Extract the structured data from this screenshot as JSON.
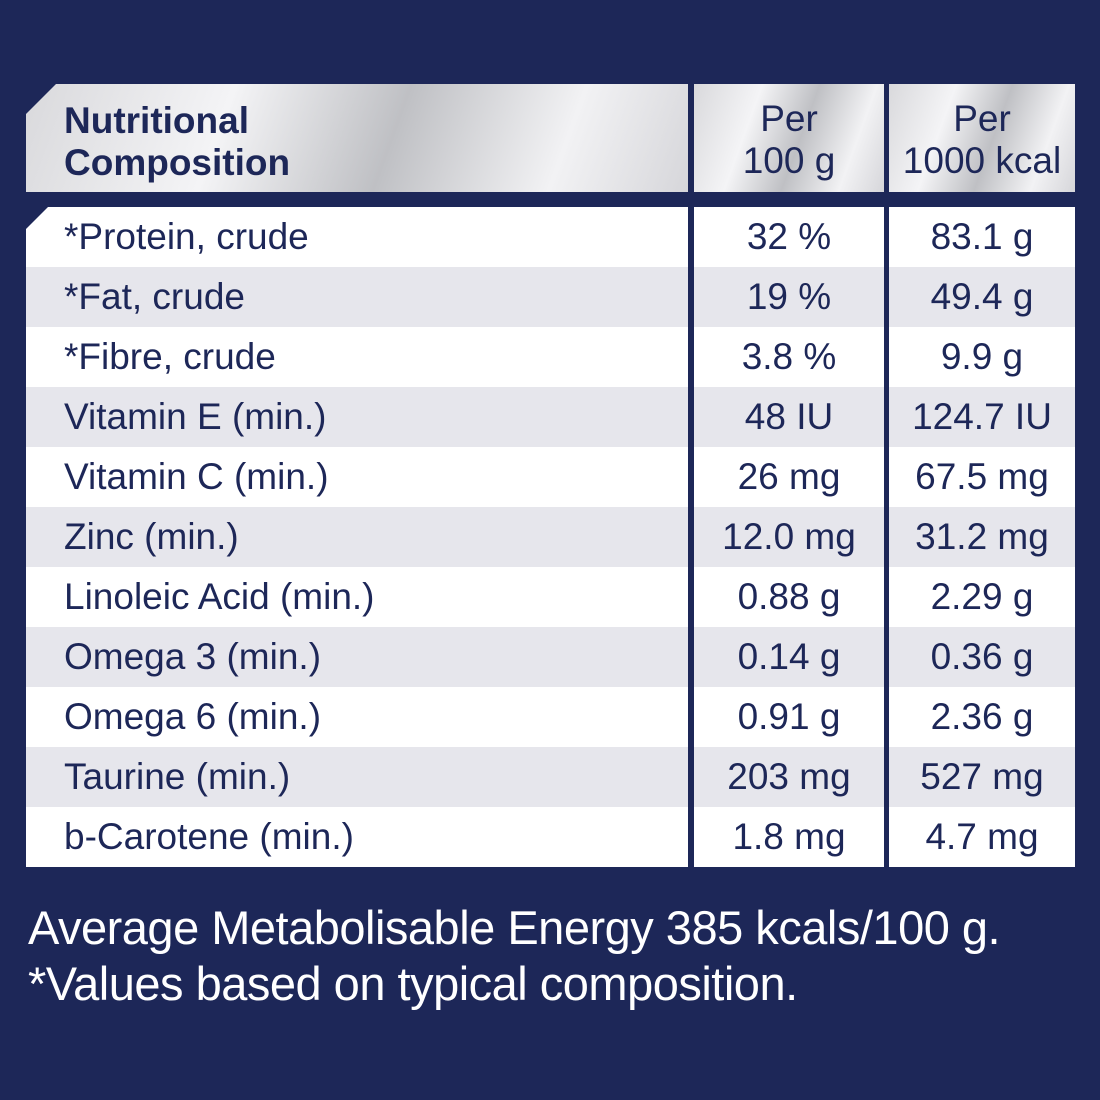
{
  "header": {
    "label_line1": "Nutritional",
    "label_line2": "Composition",
    "col1_line1": "Per",
    "col1_line2": "100 g",
    "col2_line1": "Per",
    "col2_line2": "1000 kcal"
  },
  "rows": [
    {
      "label": "*Protein, crude",
      "per100g": "32 %",
      "per1000kcal": "83.1 g"
    },
    {
      "label": "*Fat, crude",
      "per100g": "19 %",
      "per1000kcal": "49.4 g"
    },
    {
      "label": "*Fibre, crude",
      "per100g": "3.8 %",
      "per1000kcal": "9.9 g"
    },
    {
      "label": "Vitamin E (min.)",
      "per100g": "48 IU",
      "per1000kcal": "124.7 IU"
    },
    {
      "label": "Vitamin C (min.)",
      "per100g": "26 mg",
      "per1000kcal": "67.5 mg"
    },
    {
      "label": "Zinc (min.)",
      "per100g": "12.0 mg",
      "per1000kcal": "31.2 mg"
    },
    {
      "label": "Linoleic Acid (min.)",
      "per100g": "0.88 g",
      "per1000kcal": "2.29 g"
    },
    {
      "label": "Omega 3 (min.)",
      "per100g": "0.14 g",
      "per1000kcal": "0.36 g"
    },
    {
      "label": "Omega 6 (min.)",
      "per100g": "0.91 g",
      "per1000kcal": "2.36 g"
    },
    {
      "label": "Taurine (min.)",
      "per100g": "203 mg",
      "per1000kcal": "527 mg"
    },
    {
      "label": "b-Carotene (min.)",
      "per100g": "1.8 mg",
      "per1000kcal": "4.7 mg"
    }
  ],
  "footer": {
    "line1": "Average Metabolisable Energy 385 kcals/100 g.",
    "line2": "*Values based on typical composition."
  },
  "colors": {
    "background": "#1d2758",
    "text": "#1d2758",
    "row_alt": "#e6e6ec",
    "row": "#ffffff"
  }
}
